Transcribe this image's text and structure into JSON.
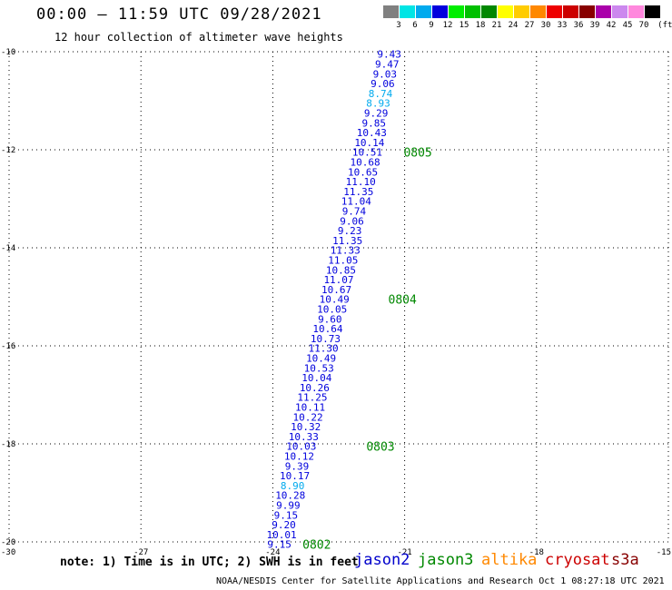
{
  "header": {
    "title": "00:00 – 11:59 UTC 09/28/2021",
    "subtitle": "12 hour collection of altimeter wave heights"
  },
  "legend": {
    "unit": "(ft)",
    "bins": [
      {
        "label": "3",
        "color": "#808080"
      },
      {
        "label": "6",
        "color": "#00e5e5"
      },
      {
        "label": "9",
        "color": "#00aaee"
      },
      {
        "label": "12",
        "color": "#0000dd"
      },
      {
        "label": "15",
        "color": "#00ee00"
      },
      {
        "label": "18",
        "color": "#00c000"
      },
      {
        "label": "21",
        "color": "#008800"
      },
      {
        "label": "24",
        "color": "#ffff00"
      },
      {
        "label": "27",
        "color": "#ffcc00"
      },
      {
        "label": "30",
        "color": "#ff8800"
      },
      {
        "label": "33",
        "color": "#ee0000"
      },
      {
        "label": "36",
        "color": "#cc0000"
      },
      {
        "label": "39",
        "color": "#880000"
      },
      {
        "label": "42",
        "color": "#aa00aa"
      },
      {
        "label": "45",
        "color": "#cc88ee"
      },
      {
        "label": "70",
        "color": "#ff88dd"
      },
      {
        "label": "",
        "color": "#000000"
      }
    ]
  },
  "footer": {
    "note": "note: 1) Time is in UTC; 2) SWH is in feet",
    "satellites": [
      {
        "name": "jason2",
        "color": "#0000cc"
      },
      {
        "name": "jason3",
        "color": "#008800"
      },
      {
        "name": "altika",
        "color": "#ff8800"
      },
      {
        "name": "cryosat",
        "color": "#cc0000"
      },
      {
        "name": "s3a",
        "color": "#880000"
      }
    ],
    "credit": "NOAA/NESDIS Center for Satellite Applications and Research    Oct  1 08:27:18 UTC 2021"
  },
  "chart_data": {
    "type": "scatter",
    "title": "00:00 – 11:59 UTC 09/28/2021",
    "xlim": [
      -30,
      -15
    ],
    "ylim": [
      -20,
      -10
    ],
    "x_ticks": [
      "-30",
      "-27",
      "-24",
      "-21",
      "-18",
      "-15"
    ],
    "y_ticks": [
      "-10",
      "-12",
      "-14",
      "-16",
      "-18",
      "-20"
    ],
    "grid": true,
    "points": [
      {
        "lon": -21.35,
        "lat": -10.05,
        "swh": "9.43",
        "color": "#0000dd"
      },
      {
        "lon": -21.4,
        "lat": -10.25,
        "swh": "9.47",
        "color": "#0000dd"
      },
      {
        "lon": -21.45,
        "lat": -10.45,
        "swh": "9.03",
        "color": "#0000dd"
      },
      {
        "lon": -21.5,
        "lat": -10.65,
        "swh": "9.06",
        "color": "#0000dd"
      },
      {
        "lon": -21.55,
        "lat": -10.85,
        "swh": "8.74",
        "color": "#00aaee"
      },
      {
        "lon": -21.6,
        "lat": -11.05,
        "swh": "8.93",
        "color": "#00aaee"
      },
      {
        "lon": -21.65,
        "lat": -11.25,
        "swh": "9.29",
        "color": "#0000dd"
      },
      {
        "lon": -21.7,
        "lat": -11.45,
        "swh": "9.85",
        "color": "#0000dd"
      },
      {
        "lon": -21.75,
        "lat": -11.65,
        "swh": "10.43",
        "color": "#0000dd"
      },
      {
        "lon": -21.8,
        "lat": -11.85,
        "swh": "10.14",
        "color": "#0000dd"
      },
      {
        "lon": -21.85,
        "lat": -12.05,
        "swh": "10.51",
        "color": "#0000dd"
      },
      {
        "lon": -21.9,
        "lat": -12.25,
        "swh": "10.68",
        "color": "#0000dd"
      },
      {
        "lon": -21.95,
        "lat": -12.45,
        "swh": "10.65",
        "color": "#0000dd"
      },
      {
        "lon": -22.0,
        "lat": -12.65,
        "swh": "11.10",
        "color": "#0000dd"
      },
      {
        "lon": -22.05,
        "lat": -12.85,
        "swh": "11.35",
        "color": "#0000dd"
      },
      {
        "lon": -22.1,
        "lat": -13.05,
        "swh": "11.04",
        "color": "#0000dd"
      },
      {
        "lon": -22.15,
        "lat": -13.25,
        "swh": "9.74",
        "color": "#0000dd"
      },
      {
        "lon": -22.2,
        "lat": -13.45,
        "swh": "9.06",
        "color": "#0000dd"
      },
      {
        "lon": -22.25,
        "lat": -13.65,
        "swh": "9.23",
        "color": "#0000dd"
      },
      {
        "lon": -22.3,
        "lat": -13.85,
        "swh": "11.35",
        "color": "#0000dd"
      },
      {
        "lon": -22.35,
        "lat": -14.05,
        "swh": "11.33",
        "color": "#0000dd"
      },
      {
        "lon": -22.4,
        "lat": -14.25,
        "swh": "11.05",
        "color": "#0000dd"
      },
      {
        "lon": -22.45,
        "lat": -14.45,
        "swh": "10.85",
        "color": "#0000dd"
      },
      {
        "lon": -22.5,
        "lat": -14.65,
        "swh": "11.07",
        "color": "#0000dd"
      },
      {
        "lon": -22.55,
        "lat": -14.85,
        "swh": "10.67",
        "color": "#0000dd"
      },
      {
        "lon": -22.6,
        "lat": -15.05,
        "swh": "10.49",
        "color": "#0000dd"
      },
      {
        "lon": -22.65,
        "lat": -15.25,
        "swh": "10.05",
        "color": "#0000dd"
      },
      {
        "lon": -22.7,
        "lat": -15.45,
        "swh": "9.60",
        "color": "#0000dd"
      },
      {
        "lon": -22.75,
        "lat": -15.65,
        "swh": "10.64",
        "color": "#0000dd"
      },
      {
        "lon": -22.8,
        "lat": -15.85,
        "swh": "10.73",
        "color": "#0000dd"
      },
      {
        "lon": -22.85,
        "lat": -16.05,
        "swh": "11.30",
        "color": "#0000dd"
      },
      {
        "lon": -22.9,
        "lat": -16.25,
        "swh": "10.49",
        "color": "#0000dd"
      },
      {
        "lon": -22.95,
        "lat": -16.45,
        "swh": "10.53",
        "color": "#0000dd"
      },
      {
        "lon": -23.0,
        "lat": -16.65,
        "swh": "10.04",
        "color": "#0000dd"
      },
      {
        "lon": -23.05,
        "lat": -16.85,
        "swh": "10.26",
        "color": "#0000dd"
      },
      {
        "lon": -23.1,
        "lat": -17.05,
        "swh": "11.25",
        "color": "#0000dd"
      },
      {
        "lon": -23.15,
        "lat": -17.25,
        "swh": "10.11",
        "color": "#0000dd"
      },
      {
        "lon": -23.2,
        "lat": -17.45,
        "swh": "10.22",
        "color": "#0000dd"
      },
      {
        "lon": -23.25,
        "lat": -17.65,
        "swh": "10.32",
        "color": "#0000dd"
      },
      {
        "lon": -23.3,
        "lat": -17.85,
        "swh": "10.33",
        "color": "#0000dd"
      },
      {
        "lon": -23.35,
        "lat": -18.05,
        "swh": "10.03",
        "color": "#0000dd"
      },
      {
        "lon": -23.4,
        "lat": -18.25,
        "swh": "10.12",
        "color": "#0000dd"
      },
      {
        "lon": -23.45,
        "lat": -18.45,
        "swh": "9.39",
        "color": "#0000dd"
      },
      {
        "lon": -23.5,
        "lat": -18.65,
        "swh": "10.17",
        "color": "#0000dd"
      },
      {
        "lon": -23.55,
        "lat": -18.85,
        "swh": "8.90",
        "color": "#00aaee"
      },
      {
        "lon": -23.6,
        "lat": -19.05,
        "swh": "10.28",
        "color": "#0000dd"
      },
      {
        "lon": -23.65,
        "lat": -19.25,
        "swh": "9.99",
        "color": "#0000dd"
      },
      {
        "lon": -23.7,
        "lat": -19.45,
        "swh": "9.15",
        "color": "#0000dd"
      },
      {
        "lon": -23.75,
        "lat": -19.65,
        "swh": "9.20",
        "color": "#0000dd"
      },
      {
        "lon": -23.8,
        "lat": -19.85,
        "swh": "10.01",
        "color": "#0000dd"
      },
      {
        "lon": -23.85,
        "lat": -20.05,
        "swh": "9.15",
        "color": "#0000dd"
      }
    ],
    "time_labels": [
      {
        "text": "0805",
        "lon": -20.7,
        "lat": -12.05
      },
      {
        "text": "0804",
        "lon": -21.05,
        "lat": -15.05
      },
      {
        "text": "0803",
        "lon": -21.55,
        "lat": -18.05
      },
      {
        "text": "0802",
        "lon": -23.0,
        "lat": -20.05
      }
    ]
  }
}
